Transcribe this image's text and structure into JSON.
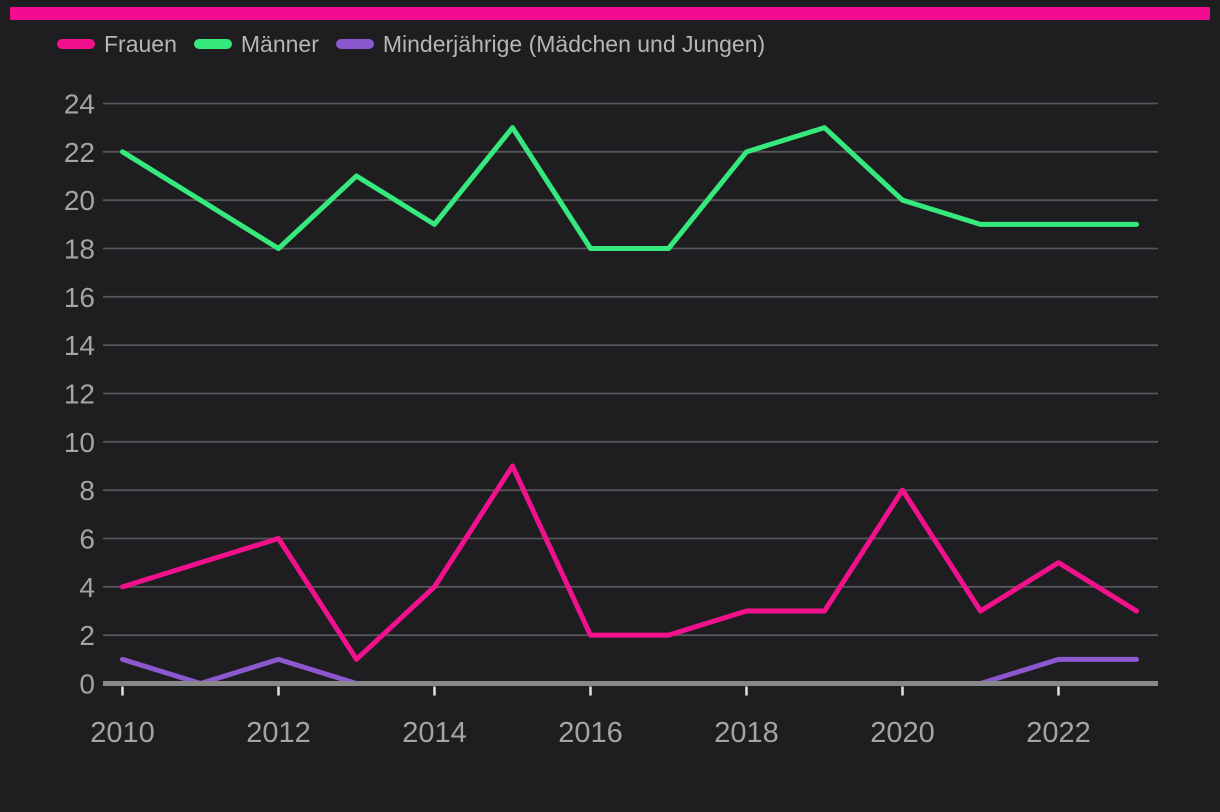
{
  "page": {
    "background_color": "#1e1e20",
    "accent_bar_color": "#f20d90"
  },
  "legend": {
    "position": "top-left"
  },
  "axis": {
    "label_color": "#a4a4a7",
    "grid_color": "#56565b",
    "axis_line_color": "#88888b",
    "tick_mark_color": "#e2e2e2"
  },
  "chart_data": {
    "type": "line",
    "title": "",
    "xlabel": "",
    "ylabel": "",
    "x": [
      2010,
      2011,
      2012,
      2013,
      2014,
      2015,
      2016,
      2017,
      2018,
      2019,
      2020,
      2021,
      2022,
      2023
    ],
    "x_tick_labels": [
      "2010",
      "2012",
      "2014",
      "2016",
      "2018",
      "2020",
      "2022"
    ],
    "x_tick_years": [
      2010,
      2012,
      2014,
      2016,
      2018,
      2020,
      2022
    ],
    "ylim": [
      0,
      24
    ],
    "y_ticks": [
      0,
      2,
      4,
      6,
      8,
      10,
      12,
      14,
      16,
      18,
      20,
      22,
      24
    ],
    "grid": true,
    "legend_position": "top-left",
    "series": [
      {
        "name": "Frauen",
        "color": "#f2118d",
        "values": [
          4,
          5,
          6,
          1,
          4,
          9,
          2,
          2,
          3,
          3,
          8,
          3,
          5,
          3
        ]
      },
      {
        "name": "Männer",
        "color": "#36e97d",
        "values": [
          22,
          20,
          18,
          21,
          19,
          23,
          18,
          18,
          22,
          23,
          20,
          19,
          19,
          19
        ]
      },
      {
        "name": "Minderjährige (Mädchen und Jungen)",
        "color": "#8b58d0",
        "values": [
          1,
          0,
          1,
          0,
          0,
          0,
          0,
          0,
          0,
          0,
          0,
          0,
          1,
          1
        ]
      }
    ]
  }
}
